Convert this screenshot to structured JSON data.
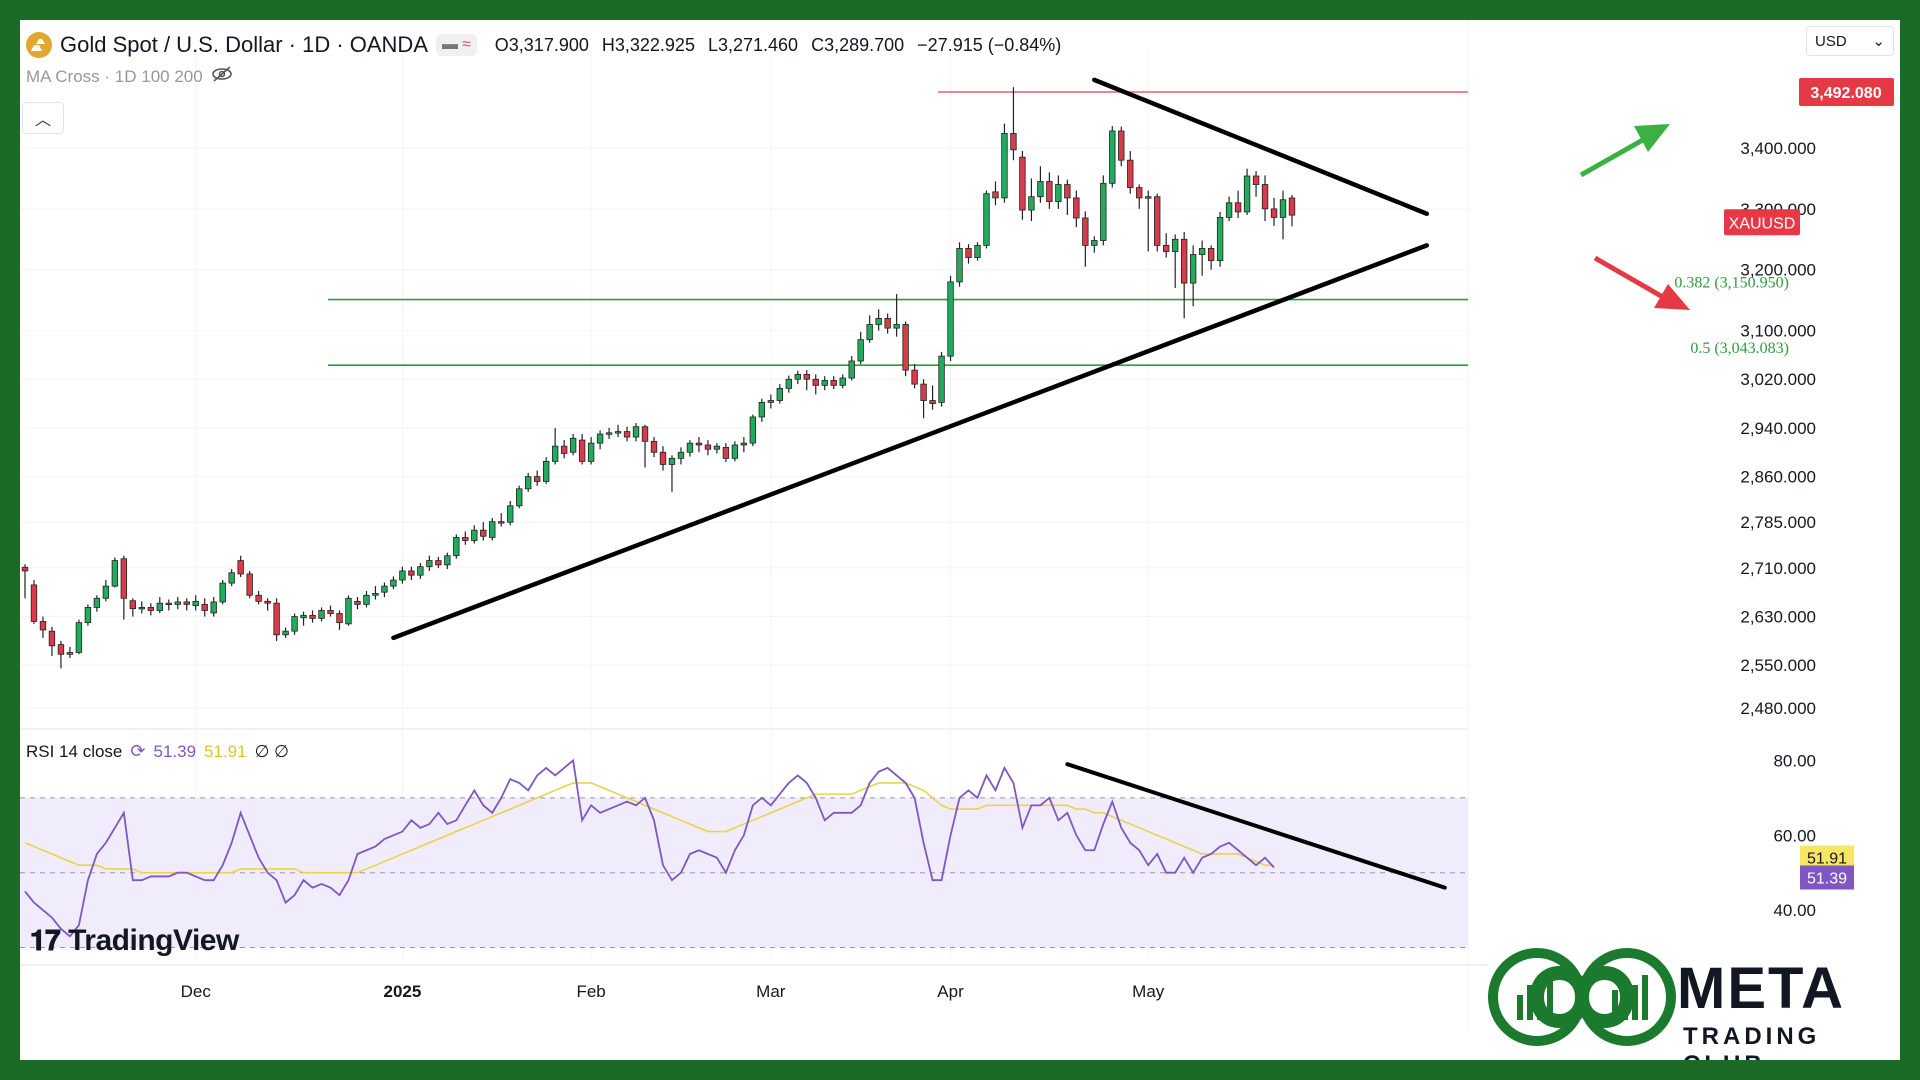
{
  "header": {
    "symbol": "Gold Spot / U.S. Dollar · 1D · OANDA",
    "open": "O3,317.900",
    "high": "H3,322.925",
    "low": "L3,271.460",
    "close": "C3,289.700",
    "change": "−27.915 (−0.84%)",
    "indicator": "MA Cross · 1D 100 200",
    "currency": "USD"
  },
  "rsi_legend": {
    "label": "RSI 14 close",
    "rsi": "51.39",
    "ma": "51.91",
    "extra": "∅ ∅"
  },
  "price_axis": {
    "ticks": [
      "3,400.000",
      "3,300.000",
      "3,200.000",
      "3,100.000",
      "3,020.000",
      "2,940.000",
      "2,860.000",
      "2,785.000",
      "2,710.000",
      "2,630.000",
      "2,550.000",
      "2,480.000"
    ],
    "labels": {
      "high_line": "3,492.080",
      "ticker": "XAUUSD"
    }
  },
  "rsi_axis": {
    "ticks": [
      "80.00",
      "60.00",
      "40.00"
    ],
    "rsi_label": "51.39",
    "ma_label": "51.91"
  },
  "time_axis": [
    "Dec",
    "2025",
    "Feb",
    "Mar",
    "Apr",
    "May"
  ],
  "fib": {
    "f382": "0.382 (3,150.950)",
    "f50": "0.5 (3,043.083)"
  },
  "branding": {
    "tradingview": "TradingView",
    "meta": "META",
    "meta_sub": "TRADING CLUB"
  },
  "colors": {
    "up": "#089981",
    "upFill": "#22ab5c",
    "down": "#d83c4a",
    "frame": "#1b6b27",
    "rsi": "#7e57c2",
    "rsiMa": "#e8d44d",
    "fib": "#2e9e3a",
    "resist": "#e06070"
  },
  "chart_data": {
    "type": "candlestick",
    "title": "Gold Spot / U.S. Dollar · 1D · OANDA",
    "ylim": [
      2460,
      3520
    ],
    "horizontal_lines": [
      {
        "label": "3,492.080",
        "value": 3492.08
      },
      {
        "label": "0.382 (3,150.950)",
        "value": 3150.95
      },
      {
        "label": "0.5 (3,043.083)",
        "value": 3043.083
      }
    ],
    "candles": [
      [
        2711,
        2705,
        2716,
        2660
      ],
      [
        2682,
        2622,
        2690,
        2618
      ],
      [
        2622,
        2608,
        2630,
        2595
      ],
      [
        2606,
        2582,
        2613,
        2565
      ],
      [
        2584,
        2568,
        2590,
        2545
      ],
      [
        2568,
        2571,
        2580,
        2562
      ],
      [
        2571,
        2620,
        2625,
        2568
      ],
      [
        2620,
        2645,
        2650,
        2615
      ],
      [
        2645,
        2660,
        2665,
        2638
      ],
      [
        2660,
        2680,
        2690,
        2655
      ],
      [
        2680,
        2722,
        2727,
        2678
      ],
      [
        2725,
        2660,
        2730,
        2625
      ],
      [
        2656,
        2643,
        2660,
        2630
      ],
      [
        2643,
        2645,
        2655,
        2635
      ],
      [
        2645,
        2640,
        2652,
        2632
      ],
      [
        2640,
        2652,
        2662,
        2636
      ],
      [
        2652,
        2650,
        2658,
        2640
      ],
      [
        2650,
        2654,
        2662,
        2642
      ],
      [
        2654,
        2650,
        2660,
        2640
      ],
      [
        2648,
        2655,
        2665,
        2640
      ],
      [
        2650,
        2640,
        2660,
        2630
      ],
      [
        2636,
        2654,
        2662,
        2630
      ],
      [
        2654,
        2685,
        2690,
        2650
      ],
      [
        2685,
        2702,
        2708,
        2680
      ],
      [
        2722,
        2700,
        2730,
        2695
      ],
      [
        2700,
        2665,
        2705,
        2660
      ],
      [
        2665,
        2655,
        2672,
        2650
      ],
      [
        2655,
        2652,
        2660,
        2640
      ],
      [
        2652,
        2600,
        2660,
        2590
      ],
      [
        2600,
        2606,
        2612,
        2595
      ],
      [
        2606,
        2630,
        2635,
        2600
      ],
      [
        2628,
        2632,
        2638,
        2615
      ],
      [
        2632,
        2627,
        2640,
        2620
      ],
      [
        2627,
        2640,
        2645,
        2622
      ],
      [
        2640,
        2635,
        2648,
        2630
      ],
      [
        2635,
        2620,
        2640,
        2608
      ],
      [
        2618,
        2660,
        2665,
        2615
      ],
      [
        2655,
        2650,
        2662,
        2642
      ],
      [
        2650,
        2665,
        2672,
        2645
      ],
      [
        2665,
        2668,
        2680,
        2658
      ],
      [
        2670,
        2680,
        2686,
        2662
      ],
      [
        2680,
        2690,
        2696,
        2675
      ],
      [
        2690,
        2705,
        2712,
        2684
      ],
      [
        2705,
        2698,
        2712,
        2690
      ],
      [
        2698,
        2712,
        2718,
        2692
      ],
      [
        2712,
        2722,
        2730,
        2705
      ],
      [
        2722,
        2715,
        2728,
        2710
      ],
      [
        2715,
        2730,
        2735,
        2708
      ],
      [
        2730,
        2760,
        2765,
        2725
      ],
      [
        2760,
        2755,
        2770,
        2748
      ],
      [
        2755,
        2772,
        2780,
        2750
      ],
      [
        2772,
        2762,
        2785,
        2755
      ],
      [
        2760,
        2786,
        2792,
        2755
      ],
      [
        2786,
        2785,
        2800,
        2778
      ],
      [
        2785,
        2812,
        2820,
        2780
      ],
      [
        2812,
        2840,
        2845,
        2808
      ],
      [
        2840,
        2860,
        2866,
        2835
      ],
      [
        2860,
        2852,
        2870,
        2845
      ],
      [
        2852,
        2885,
        2892,
        2848
      ],
      [
        2885,
        2910,
        2940,
        2880
      ],
      [
        2910,
        2898,
        2920,
        2890
      ],
      [
        2900,
        2923,
        2930,
        2895
      ],
      [
        2920,
        2885,
        2930,
        2880
      ],
      [
        2885,
        2915,
        2925,
        2880
      ],
      [
        2915,
        2930,
        2936,
        2905
      ],
      [
        2930,
        2932,
        2940,
        2922
      ],
      [
        2932,
        2934,
        2945,
        2925
      ],
      [
        2934,
        2925,
        2942,
        2918
      ],
      [
        2925,
        2942,
        2948,
        2918
      ],
      [
        2942,
        2918,
        2945,
        2875
      ],
      [
        2918,
        2900,
        2925,
        2892
      ],
      [
        2900,
        2880,
        2910,
        2870
      ],
      [
        2880,
        2890,
        2895,
        2835
      ],
      [
        2890,
        2900,
        2908,
        2880
      ],
      [
        2900,
        2915,
        2920,
        2893
      ],
      [
        2915,
        2912,
        2925,
        2900
      ],
      [
        2912,
        2905,
        2920,
        2895
      ],
      [
        2905,
        2910,
        2915,
        2898
      ],
      [
        2908,
        2890,
        2915,
        2884
      ],
      [
        2890,
        2912,
        2918,
        2885
      ],
      [
        2912,
        2915,
        2925,
        2900
      ],
      [
        2915,
        2958,
        2962,
        2910
      ],
      [
        2958,
        2982,
        2988,
        2950
      ],
      [
        2982,
        2985,
        2995,
        2972
      ],
      [
        2985,
        3005,
        3012,
        2980
      ],
      [
        3005,
        3020,
        3026,
        2998
      ],
      [
        3020,
        3028,
        3034,
        3012
      ],
      [
        3028,
        3020,
        3035,
        3002
      ],
      [
        3020,
        3010,
        3028,
        2995
      ],
      [
        3010,
        3018,
        3025,
        3002
      ],
      [
        3018,
        3010,
        3025,
        3004
      ],
      [
        3010,
        3022,
        3028,
        3005
      ],
      [
        3022,
        3050,
        3058,
        3018
      ],
      [
        3050,
        3085,
        3098,
        3045
      ],
      [
        3085,
        3110,
        3125,
        3080
      ],
      [
        3110,
        3120,
        3135,
        3100
      ],
      [
        3120,
        3104,
        3128,
        3095
      ],
      [
        3104,
        3110,
        3160,
        3090
      ],
      [
        3110,
        3035,
        3115,
        3025
      ],
      [
        3035,
        3012,
        3045,
        3005
      ],
      [
        3012,
        2985,
        3020,
        2956
      ],
      [
        2985,
        2980,
        3010,
        2970
      ],
      [
        2982,
        3058,
        3065,
        2975
      ],
      [
        3058,
        3180,
        3190,
        3050
      ],
      [
        3180,
        3235,
        3245,
        3172
      ],
      [
        3235,
        3220,
        3242,
        3210
      ],
      [
        3220,
        3240,
        3245,
        3215
      ],
      [
        3240,
        3325,
        3330,
        3235
      ],
      [
        3328,
        3318,
        3345,
        3306
      ],
      [
        3318,
        3424,
        3440,
        3310
      ],
      [
        3424,
        3397,
        3500,
        3380
      ],
      [
        3385,
        3298,
        3395,
        3282
      ],
      [
        3298,
        3320,
        3350,
        3280
      ],
      [
        3320,
        3345,
        3370,
        3310
      ],
      [
        3345,
        3312,
        3360,
        3300
      ],
      [
        3312,
        3340,
        3355,
        3300
      ],
      [
        3340,
        3318,
        3348,
        3290
      ],
      [
        3318,
        3285,
        3330,
        3270
      ],
      [
        3285,
        3240,
        3296,
        3205
      ],
      [
        3240,
        3248,
        3255,
        3228
      ],
      [
        3248,
        3342,
        3355,
        3240
      ],
      [
        3342,
        3428,
        3436,
        3335
      ],
      [
        3428,
        3380,
        3435,
        3370
      ],
      [
        3380,
        3335,
        3395,
        3325
      ],
      [
        3335,
        3318,
        3340,
        3300
      ],
      [
        3318,
        3320,
        3330,
        3230
      ],
      [
        3320,
        3240,
        3325,
        3230
      ],
      [
        3240,
        3230,
        3260,
        3220
      ],
      [
        3230,
        3250,
        3258,
        3170
      ],
      [
        3250,
        3178,
        3262,
        3120
      ],
      [
        3178,
        3225,
        3240,
        3140
      ],
      [
        3225,
        3235,
        3248,
        3190
      ],
      [
        3235,
        3215,
        3240,
        3200
      ],
      [
        3215,
        3286,
        3295,
        3205
      ],
      [
        3286,
        3310,
        3320,
        3280
      ],
      [
        3310,
        3295,
        3330,
        3285
      ],
      [
        3295,
        3354,
        3366,
        3290
      ],
      [
        3354,
        3340,
        3362,
        3320
      ],
      [
        3340,
        3300,
        3355,
        3280
      ],
      [
        3300,
        3286,
        3318,
        3272
      ],
      [
        3286,
        3315,
        3330,
        3250
      ],
      [
        3317.9,
        3289.7,
        3322.925,
        3271.46
      ]
    ],
    "rsi": [
      45,
      42,
      40,
      38,
      35,
      33,
      36,
      48,
      55,
      58,
      62,
      66,
      48,
      48,
      49,
      49,
      49,
      50,
      50,
      49,
      48,
      48,
      52,
      58,
      66,
      60,
      54,
      50,
      48,
      42,
      44,
      48,
      46,
      47,
      46,
      44,
      48,
      55,
      56,
      57,
      59,
      60,
      61,
      64,
      62,
      63,
      66,
      63,
      64,
      68,
      72,
      68,
      66,
      70,
      75,
      74,
      72,
      76,
      78,
      76,
      78,
      80,
      64,
      68,
      66,
      67,
      68,
      69,
      68,
      70,
      64,
      52,
      48,
      50,
      55,
      56,
      55,
      54,
      50,
      56,
      60,
      68,
      70,
      68,
      71,
      74,
      76,
      74,
      70,
      64,
      66,
      66,
      66,
      68,
      74,
      77,
      78,
      76,
      74,
      70,
      58,
      48,
      48,
      60,
      70,
      72,
      70,
      76,
      72,
      78,
      74,
      62,
      68,
      68,
      70,
      64,
      66,
      60,
      56,
      56,
      63,
      69,
      62,
      58,
      56,
      52,
      55,
      50,
      50,
      54,
      50,
      54,
      55,
      57,
      58,
      56,
      54,
      52,
      54,
      51.39
    ],
    "rsi_ma": [
      58,
      57,
      56,
      55,
      54,
      53,
      52,
      52,
      52,
      51,
      51,
      51,
      51,
      50,
      50,
      50,
      50,
      50,
      50,
      50,
      50,
      50,
      50,
      50,
      51,
      51,
      51,
      51,
      51,
      51,
      51,
      50,
      50,
      50,
      50,
      50,
      50,
      50,
      51,
      52,
      53,
      54,
      55,
      56,
      57,
      58,
      59,
      60,
      61,
      62,
      63,
      64,
      65,
      66,
      67,
      68,
      69,
      70,
      71,
      72,
      73,
      74,
      74,
      74,
      73,
      72,
      71,
      70,
      69,
      68,
      67,
      66,
      65,
      64,
      63,
      62,
      61,
      61,
      61,
      62,
      63,
      64,
      65,
      66,
      67,
      68,
      69,
      70,
      71,
      71,
      71,
      71,
      71,
      72,
      73,
      74,
      74,
      74,
      74,
      73,
      72,
      70,
      68,
      67,
      67,
      67,
      67,
      68,
      68,
      68,
      68,
      68,
      68,
      68,
      68,
      68,
      68,
      67,
      67,
      66,
      66,
      65,
      64,
      63,
      62,
      61,
      60,
      59,
      58,
      57,
      56,
      55,
      55,
      55,
      55,
      55,
      54,
      53,
      52,
      51.91
    ],
    "rsi_ylim": [
      28,
      86
    ],
    "rsi_levels": [
      70,
      50,
      30
    ],
    "x_labels": [
      {
        "label": "Dec",
        "index": 19
      },
      {
        "label": "2025",
        "index": 42
      },
      {
        "label": "Feb",
        "index": 63
      },
      {
        "label": "Mar",
        "index": 83
      },
      {
        "label": "Apr",
        "index": 103
      },
      {
        "label": "May",
        "index": 125
      }
    ],
    "trendlines": [
      {
        "name": "support",
        "from": [
          41,
          2595
        ],
        "to": [
          156,
          3240
        ]
      },
      {
        "name": "resistance",
        "from": [
          119,
          3512
        ],
        "to": [
          156,
          3292
        ]
      }
    ],
    "rsi_trendline": {
      "from": [
        116,
        79
      ],
      "to": [
        158,
        46
      ]
    }
  }
}
